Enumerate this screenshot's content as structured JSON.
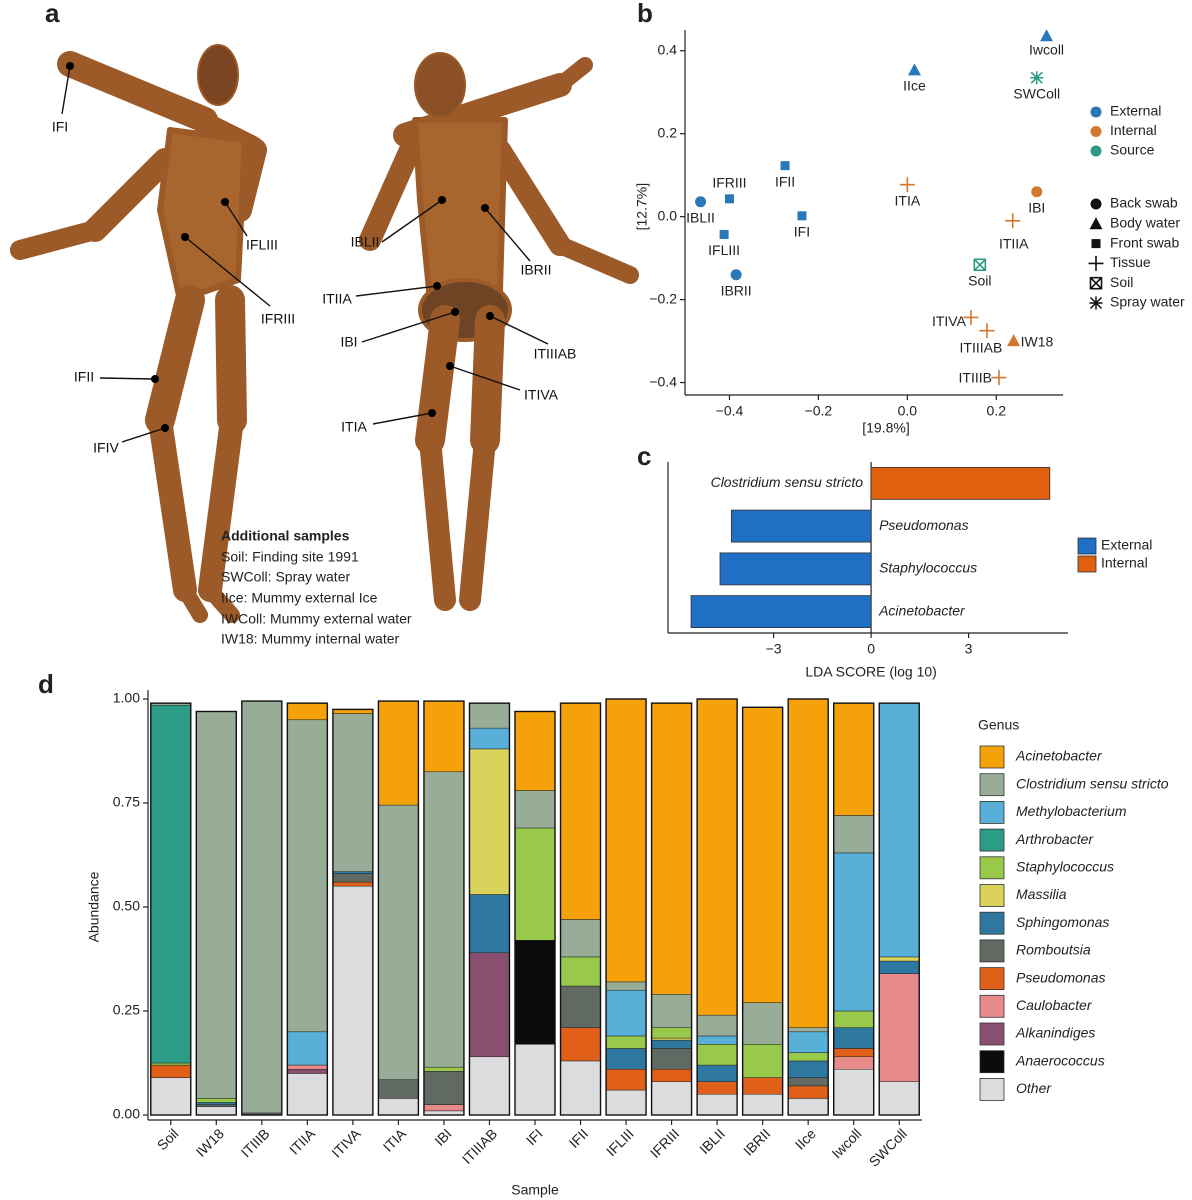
{
  "figure": {
    "panel_labels": [
      "a",
      "b",
      "c",
      "d"
    ],
    "photo_labels": [
      "IFI",
      "IFLIII",
      "IFRIII",
      "IFII",
      "IFIV",
      "IBLII",
      "IBRII",
      "ITIIA",
      "IBI",
      "ITIIIAB",
      "ITIVA",
      "ITIA"
    ],
    "additional_samples": {
      "title": "Additional samples",
      "lines": [
        "Soil: Finding site 1991",
        "SWColl: Spray water",
        "IIce: Mummy external Ice",
        "IWColl: Mummy external water",
        "IW18: Mummy internal water"
      ]
    }
  },
  "chart_data": [
    {
      "type": "scatter",
      "x_label": "[19.8%]",
      "y_label": "[12.7%]",
      "xlim": [
        -0.5,
        0.35
      ],
      "ylim": [
        -0.43,
        0.45
      ],
      "xticks": [
        {
          "value": -0.4,
          "label": "−0.4"
        },
        {
          "value": -0.2,
          "label": "−0.2"
        },
        {
          "value": 0,
          "label": "0.0"
        },
        0.2
      ],
      "yticks": [
        {
          "value": -0.4,
          "label": "−0.4"
        },
        {
          "value": -0.2,
          "label": "−0.2"
        },
        {
          "value": 0,
          "label": "0.0"
        },
        0.2,
        0.4
      ],
      "shapes": [
        {
          "name": "Back swab",
          "marker": "circle"
        },
        {
          "name": "Body water",
          "marker": "triangle"
        },
        {
          "name": "Front swab",
          "marker": "square"
        },
        {
          "name": "Tissue",
          "marker": "plus"
        },
        {
          "name": "Soil",
          "marker": "square-x"
        },
        {
          "name": "Spray water",
          "marker": "asterisk"
        }
      ],
      "series": [
        {
          "name": "External",
          "color": "#2a78b8",
          "labels": [
            "Iwcoll",
            "IIce",
            "IFII",
            "IFRIII",
            "IBLII",
            "IFLIII",
            "IFI",
            "IBRII"
          ],
          "types": [
            "Body water",
            "Body water",
            "Front swab",
            "Front swab",
            "Back swab",
            "Front swab",
            "Front swab",
            "Back swab"
          ],
          "x": [
            0.313,
            0.016,
            -0.275,
            -0.4,
            -0.465,
            -0.412,
            -0.237,
            -0.385
          ],
          "values": [
            0.436,
            0.354,
            0.123,
            0.043,
            0.036,
            -0.043,
            0.002,
            -0.14
          ]
        },
        {
          "name": "Internal",
          "color": "#d2782e",
          "labels": [
            "ITIA",
            "IBI",
            "ITIIA",
            "ITIVA",
            "ITIIIAB",
            "IW18",
            "ITIIIB"
          ],
          "types": [
            "Tissue",
            "Back swab",
            "Tissue",
            "Tissue",
            "Tissue",
            "Body water",
            "Tissue"
          ],
          "x": [
            0.0,
            0.291,
            0.237,
            0.143,
            0.179,
            0.239,
            0.206
          ],
          "values": [
            0.077,
            0.06,
            -0.01,
            -0.243,
            -0.275,
            -0.299,
            -0.388
          ]
        },
        {
          "name": "Source",
          "color": "#2a9a83",
          "labels": [
            "SWColl",
            "Soil"
          ],
          "types": [
            "Spray water",
            "Soil"
          ],
          "x": [
            0.291,
            0.163
          ],
          "values": [
            0.335,
            -0.116
          ]
        }
      ]
    },
    {
      "type": "hbar",
      "x_label": "LDA SCORE (log 10)",
      "categories": [
        "Clostridium sensu stricto",
        "Pseudomonas",
        "Staphylococcus",
        "Acinetobacter"
      ],
      "xlim": [
        -6.25,
        6.06
      ],
      "xticks": [
        {
          "value": -3,
          "label": "−3"
        },
        0,
        3
      ],
      "series": [
        {
          "name": "External",
          "color": "#1f6fc5",
          "values": [
            null,
            -4.3,
            -4.65,
            -5.54
          ]
        },
        {
          "name": "Internal",
          "color": "#e0600f",
          "values": [
            5.5,
            null,
            null,
            null
          ]
        }
      ]
    },
    {
      "type": "stacked_bar",
      "x_label": "Sample",
      "y_label": "Abundance",
      "legend_title": "Genus",
      "categories": [
        "Soil",
        "IW18",
        "ITIIIB",
        "ITIIA",
        "ITIVA",
        "ITIA",
        "IBI",
        "ITIIIAB",
        "IFI",
        "IFII",
        "IFLIII",
        "IFRIII",
        "IBLII",
        "IBRII",
        "IIce",
        "Iwcoll",
        "SWColl"
      ],
      "ylim": [
        -0.012,
        1.0216
      ],
      "yticks": [
        {
          "value": 0,
          "label": "0.00"
        },
        0.25,
        {
          "value": 0.5,
          "label": "0.50"
        },
        0.75,
        {
          "value": 1,
          "label": "1.00"
        }
      ],
      "series": [
        {
          "name": "Acinetobacter",
          "color": "#f5a10a",
          "values": [
            0,
            0,
            0,
            0.04,
            0.01,
            0.25,
            0.17,
            0,
            0.19,
            0.52,
            0.68,
            0.7,
            0.76,
            0.71,
            0.79,
            0.27,
            0
          ]
        },
        {
          "name": "Clostridium sensu stricto",
          "color": "#98ad98",
          "values": [
            0.005,
            0.93,
            0.99,
            0.75,
            0.38,
            0.66,
            0.71,
            0.06,
            0.09,
            0.09,
            0.02,
            0.08,
            0.05,
            0.1,
            0.01,
            0.09,
            0
          ]
        },
        {
          "name": "Methylobacterium",
          "color": "#58b0d8",
          "values": [
            0,
            0,
            0,
            0.08,
            0,
            0,
            0,
            0.05,
            0,
            0,
            0.11,
            0,
            0.02,
            0,
            0.05,
            0.38,
            0.61
          ]
        },
        {
          "name": "Arthrobacter",
          "color": "#2b9c87",
          "values": [
            0.86,
            0,
            0,
            0,
            0,
            0,
            0,
            0,
            0,
            0,
            0,
            0,
            0,
            0,
            0,
            0,
            0
          ]
        },
        {
          "name": "Staphylococcus",
          "color": "#98c94a",
          "values": [
            0.005,
            0.01,
            0,
            0,
            0,
            0,
            0.01,
            0,
            0.27,
            0.07,
            0.03,
            0.025,
            0.05,
            0.08,
            0.02,
            0.04,
            0
          ]
        },
        {
          "name": "Massilia",
          "color": "#d9d35c",
          "values": [
            0,
            0,
            0,
            0,
            0,
            0,
            0,
            0.35,
            0,
            0,
            0,
            0.005,
            0,
            0,
            0,
            0,
            0.01
          ]
        },
        {
          "name": "Sphingomonas",
          "color": "#2e78a0",
          "values": [
            0,
            0.005,
            0,
            0,
            0.005,
            0,
            0,
            0.14,
            0,
            0,
            0.05,
            0.02,
            0.04,
            0,
            0.04,
            0.05,
            0.03
          ]
        },
        {
          "name": "Romboutsia",
          "color": "#606a62",
          "values": [
            0,
            0.005,
            0.005,
            0,
            0.02,
            0.045,
            0.08,
            0,
            0,
            0.1,
            0,
            0.05,
            0,
            0,
            0.02,
            0,
            0
          ]
        },
        {
          "name": "Pseudomonas",
          "color": "#e0601a",
          "values": [
            0.03,
            0,
            0,
            0,
            0.01,
            0,
            0,
            0,
            0,
            0.08,
            0.05,
            0.03,
            0.03,
            0.04,
            0.03,
            0.02,
            0
          ]
        },
        {
          "name": "Caulobacter",
          "color": "#e68a8a",
          "values": [
            0,
            0,
            0,
            0.01,
            0,
            0,
            0.015,
            0,
            0,
            0,
            0,
            0,
            0,
            0,
            0,
            0.03,
            0.26
          ]
        },
        {
          "name": "Alkanindiges",
          "color": "#8b4f6f",
          "values": [
            0,
            0,
            0,
            0.01,
            0,
            0,
            0,
            0.25,
            0,
            0,
            0,
            0,
            0,
            0,
            0,
            0,
            0
          ]
        },
        {
          "name": "Anaerococcus",
          "color": "#0c0a0c",
          "values": [
            0,
            0,
            0,
            0,
            0,
            0,
            0,
            0,
            0.25,
            0,
            0,
            0,
            0,
            0,
            0,
            0,
            0
          ]
        },
        {
          "name": "Other",
          "color": "#dcdcdf",
          "values": [
            0.09,
            0.02,
            0,
            0.1,
            0.55,
            0.04,
            0.01,
            0.14,
            0.17,
            0.13,
            0.06,
            0.08,
            0.05,
            0.05,
            0.04,
            0.11,
            0.08
          ]
        }
      ]
    }
  ]
}
